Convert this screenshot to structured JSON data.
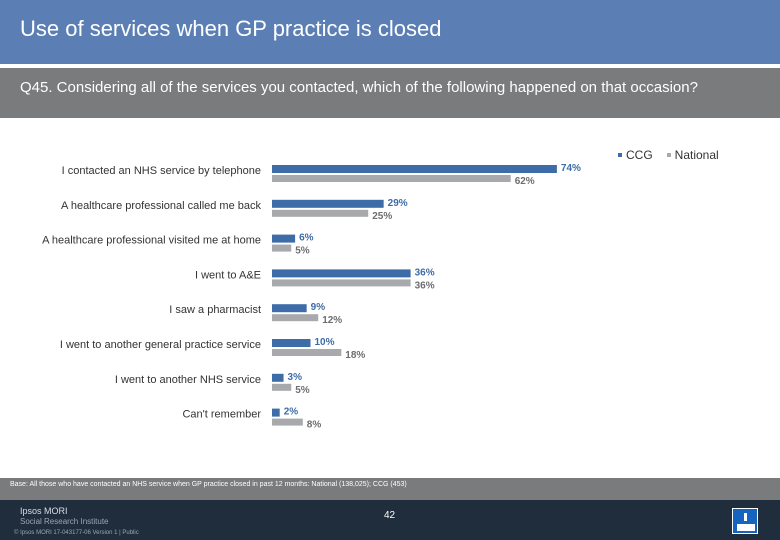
{
  "header": {
    "title": "Use of services when GP practice is closed",
    "question": "Q45. Considering all of the services you contacted, which of the following happened on that occasion?"
  },
  "legend": {
    "ccg_label": "CCG",
    "national_label": "National"
  },
  "colors": {
    "ccg": "#3e6ca8",
    "national": "#a7a9ac",
    "ccg_label": "#3e6ca8",
    "national_label": "#6d6e71"
  },
  "chart_data": {
    "type": "bar",
    "orientation": "horizontal",
    "categories": [
      "I contacted an NHS service by telephone",
      "A healthcare professional called me back",
      "A healthcare professional visited me at home",
      "I went to A&E",
      "I saw a pharmacist",
      "I went to another general practice service",
      "I went to another NHS service",
      "Can't remember"
    ],
    "series": [
      {
        "name": "CCG",
        "values": [
          74,
          29,
          6,
          36,
          9,
          10,
          3,
          2
        ],
        "labels": [
          "74%",
          "29%",
          "6%",
          "36%",
          "9%",
          "10%",
          "3%",
          "2%"
        ]
      },
      {
        "name": "National",
        "values": [
          62,
          25,
          5,
          36,
          12,
          18,
          5,
          8
        ],
        "labels": [
          "62%",
          "25%",
          "5%",
          "36%",
          "12%",
          "18%",
          "5%",
          "8%"
        ]
      }
    ],
    "xlim": [
      0,
      100
    ],
    "legend_position": "top-right",
    "grid": false
  },
  "footer": {
    "base_note": "Base: All those who have contacted an NHS service when GP practice closed in past 12 months: National (138,025); CCG (453)",
    "logo_line1": "Ipsos MORI",
    "logo_line2": "Social Research Institute",
    "meta": "© Ipsos MORI     17-043177-06 Version 1 | Public",
    "page_number": "42"
  }
}
